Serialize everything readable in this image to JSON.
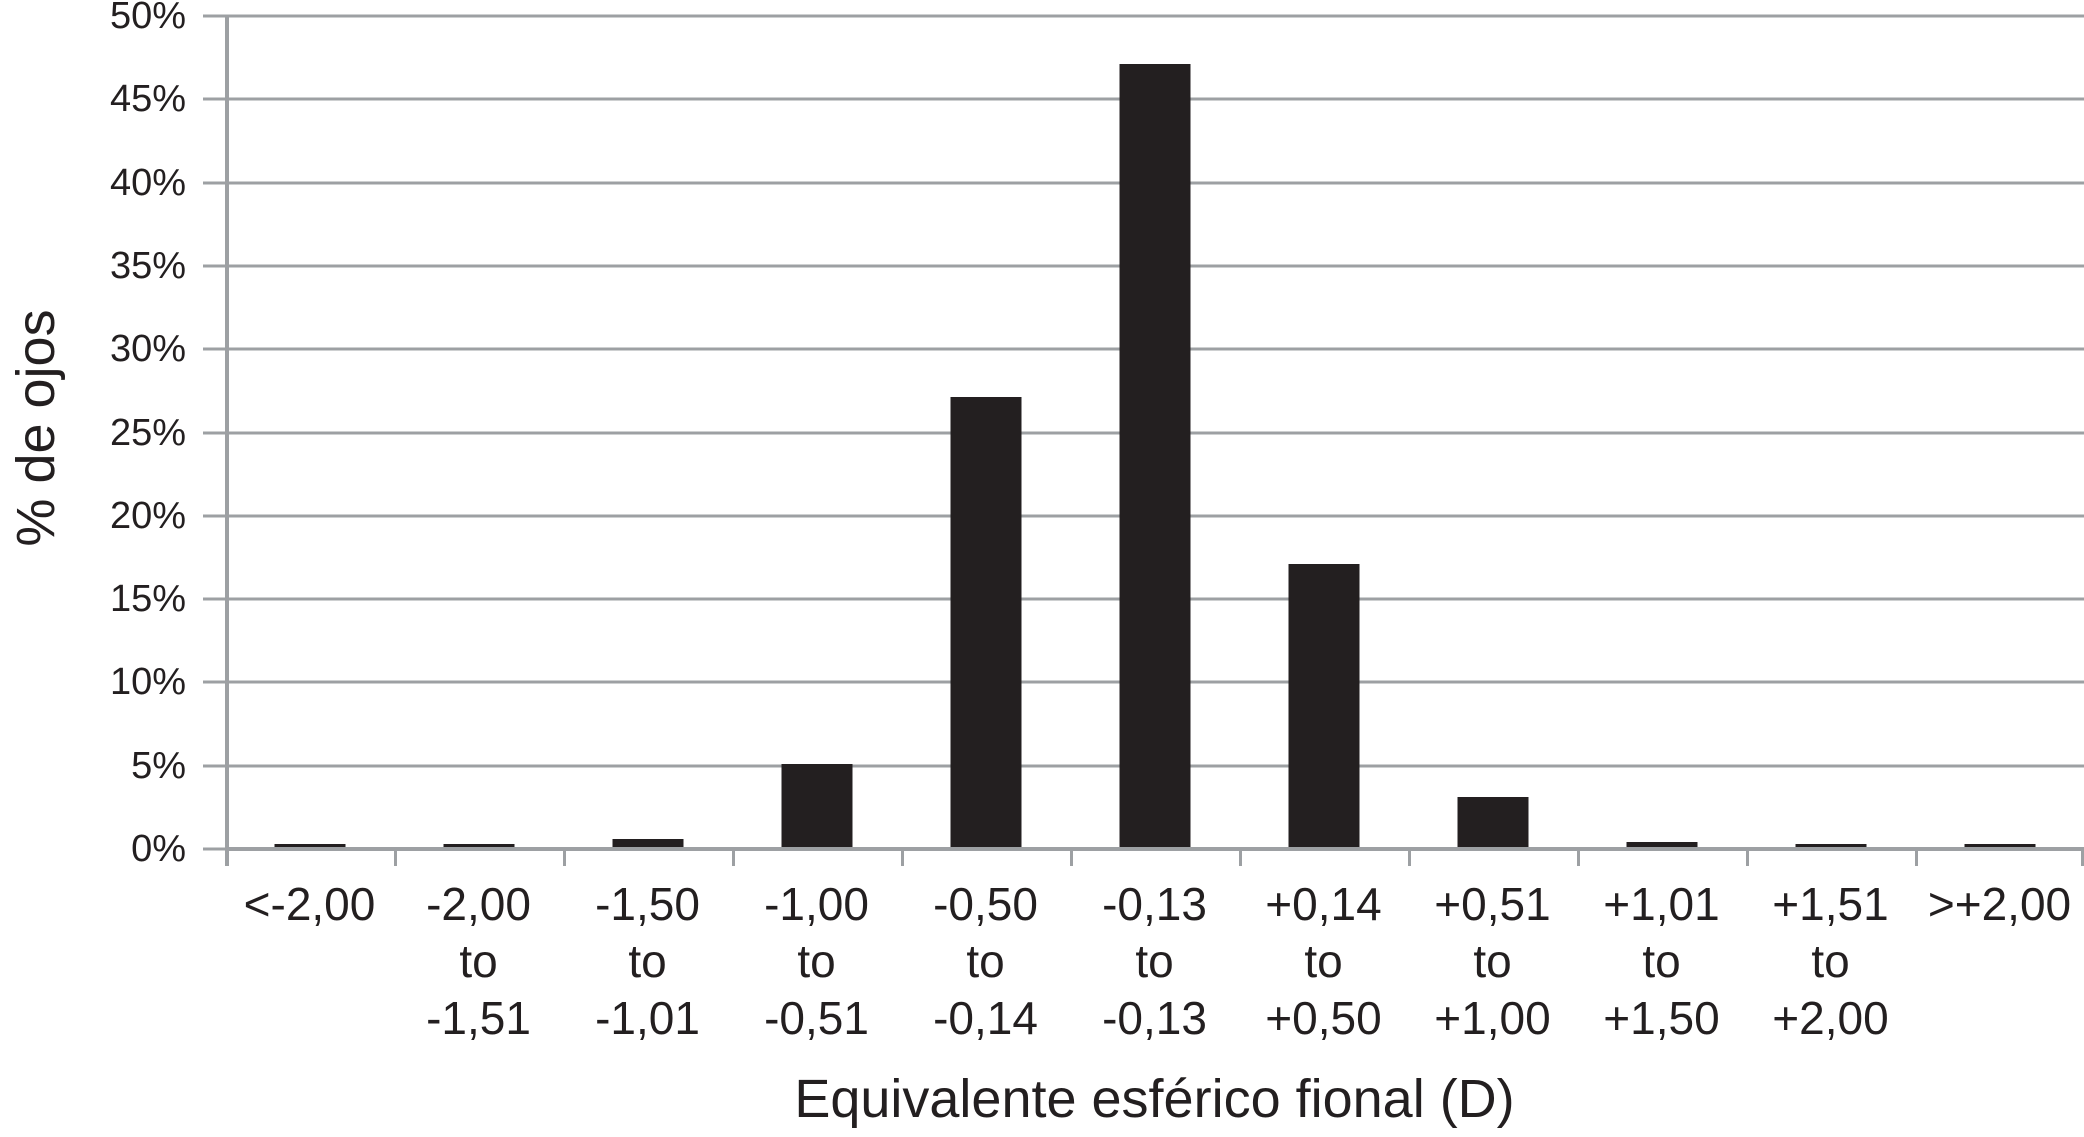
{
  "chart_data": {
    "type": "bar",
    "title": "",
    "xlabel": "Equivalente esférico fional (D)",
    "ylabel": "% de ojos",
    "categories": [
      "<-2,00",
      "-2,00\nto\n-1,51",
      "-1,50\nto\n-1,01",
      "-1,00\nto\n-0,51",
      "-0,50\nto\n-0,14",
      "-0,13\nto\n-0,13",
      "+0,14\nto\n+0,50",
      "+0,51\nto\n+1,00",
      "+1,01\nto\n+1,50",
      "+1,51\nto\n+2,00",
      ">+2,00"
    ],
    "values": [
      0.2,
      0.2,
      0.5,
      5,
      27,
      47,
      17,
      3,
      0.3,
      0.2,
      0.2
    ],
    "y_ticks": [
      "0%",
      "5%",
      "10%",
      "15%",
      "20%",
      "25%",
      "30%",
      "35%",
      "40%",
      "45%",
      "50%"
    ],
    "y_tick_values": [
      0,
      5,
      10,
      15,
      20,
      25,
      30,
      35,
      40,
      45,
      50
    ],
    "ylim": [
      0,
      50
    ],
    "grid": true,
    "legend": false,
    "bar_color": "#231f20",
    "grid_color": "#9da0a3",
    "text_color": "#231f20",
    "background": "#ffffff"
  }
}
